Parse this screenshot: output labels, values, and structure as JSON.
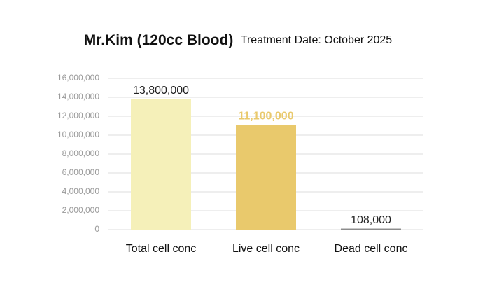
{
  "chart_data": {
    "type": "bar",
    "title": "Mr.Kim (120cc Blood)",
    "subtitle": "Treatment Date: October 2025",
    "categories": [
      "Total cell conc",
      "Live cell conc",
      "Dead cell conc"
    ],
    "values": [
      13800000,
      11100000,
      108000
    ],
    "value_labels": [
      "13,800,000",
      "11,100,000",
      "108,000"
    ],
    "colors": [
      "#f5f0b9",
      "#e9c96c",
      "#8c8c8c"
    ],
    "value_label_colors": [
      "#222222",
      "#e9c96c",
      "#222222"
    ],
    "ylim": [
      0,
      16000000
    ],
    "yticks": [
      {
        "value": 0,
        "label": "0"
      },
      {
        "value": 2000000,
        "label": "2,000,000"
      },
      {
        "value": 4000000,
        "label": "4,000,000"
      },
      {
        "value": 6000000,
        "label": "6,000,000"
      },
      {
        "value": 8000000,
        "label": "8,000,000"
      },
      {
        "value": 10000000,
        "label": "10,000,000"
      },
      {
        "value": 12000000,
        "label": "12,000,000"
      },
      {
        "value": 14000000,
        "label": "14,000,000"
      },
      {
        "value": 16000000,
        "label": "16,000,000"
      }
    ],
    "grid": true
  }
}
